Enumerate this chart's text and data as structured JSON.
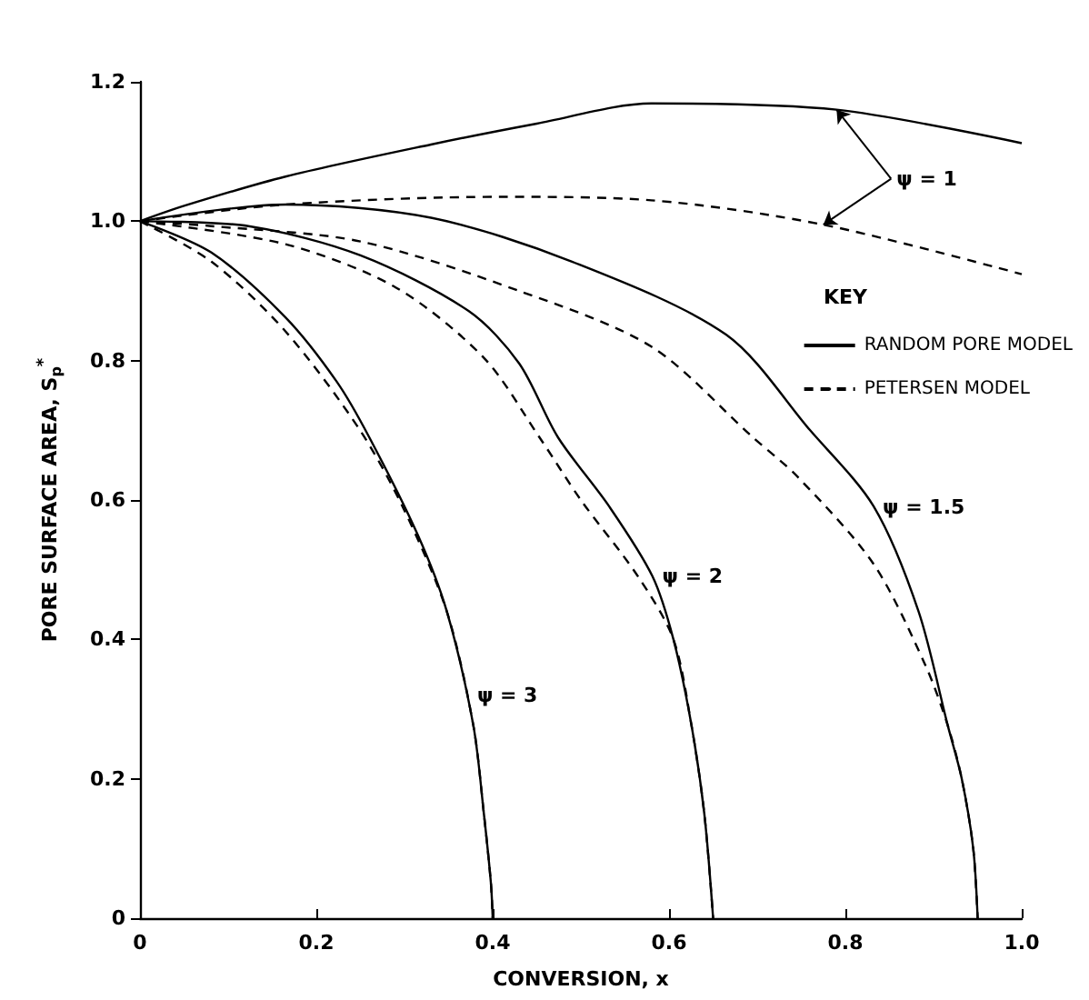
{
  "chart_data": {
    "type": "line",
    "xlabel": "CONVERSION, x",
    "ylabel": "PORE SURFACE AREA, S$_{p}$$^{*}$",
    "xlim": [
      0,
      1
    ],
    "xticks": [
      0,
      0.2,
      0.4,
      0.6,
      0.8,
      {
        "value": 1,
        "label": "1.0"
      }
    ],
    "ylim": [
      0,
      1.2
    ],
    "yticks": [
      0,
      0.2,
      0.4,
      0.6,
      0.8,
      {
        "value": 1,
        "label": "1.0"
      },
      1.2
    ],
    "legend": "right",
    "legend_title": "KEY",
    "grid": false,
    "marker": "none",
    "series": [
      {
        "name": "RANDOM PORE MODEL",
        "color": "#000000",
        "line_style": "solid",
        "x": [
          0,
          0.05,
          0.165,
          0.33,
          0.45,
          0.58,
          0.79,
          1.0
        ],
        "values": [
          1.0,
          1.022,
          1.064,
          1.11,
          1.14,
          1.169,
          1.16,
          1.112
        ]
      },
      {
        "color": "#000000",
        "line_style": "solid",
        "x": [
          0,
          0.165,
          0.33,
          0.49,
          0.665,
          0.76,
          0.832,
          0.883,
          0.916,
          0.932,
          0.945,
          0.95
        ],
        "values": [
          1.0,
          1.024,
          1.005,
          0.942,
          0.837,
          0.7,
          0.591,
          0.44,
          0.277,
          0.2,
          0.1,
          0
        ]
      },
      {
        "color": "#000000",
        "line_style": "solid",
        "x": [
          0,
          0.123,
          0.25,
          0.373,
          0.43,
          0.474,
          0.532,
          0.581,
          0.605,
          0.625,
          0.64,
          0.65
        ],
        "values": [
          1.0,
          0.993,
          0.951,
          0.871,
          0.796,
          0.69,
          0.591,
          0.491,
          0.4,
          0.28,
          0.15,
          0
        ]
      },
      {
        "color": "#000000",
        "line_style": "solid",
        "x": [
          0,
          0.081,
          0.165,
          0.223,
          0.26,
          0.315,
          0.348,
          0.378,
          0.39,
          0.398,
          0.4
        ],
        "values": [
          1.0,
          0.955,
          0.862,
          0.77,
          0.69,
          0.55,
          0.44,
          0.277,
          0.15,
          0.05,
          0
        ]
      },
      {
        "name": "PETERSEN MODEL",
        "color": "#000000",
        "line_style": "dashed",
        "x": [
          0,
          0.165,
          0.41,
          0.58,
          0.775,
          1.0
        ],
        "values": [
          1.0,
          1.024,
          1.035,
          1.03,
          0.995,
          0.924
        ]
      },
      {
        "color": "#000000",
        "line_style": "dashed",
        "x": [
          0,
          0.081,
          0.25,
          0.43,
          0.58,
          0.695,
          0.746,
          0.832,
          0.89,
          0.916,
          0.932,
          0.945,
          0.95
        ],
        "values": [
          1.0,
          0.993,
          0.971,
          0.9,
          0.82,
          0.69,
          0.633,
          0.508,
          0.365,
          0.277,
          0.2,
          0.1,
          0
        ]
      },
      {
        "color": "#000000",
        "line_style": "dashed",
        "x": [
          0,
          0.165,
          0.29,
          0.39,
          0.453,
          0.5,
          0.565,
          0.605,
          0.625,
          0.64,
          0.65
        ],
        "values": [
          1.0,
          0.967,
          0.905,
          0.804,
          0.69,
          0.6,
          0.49,
          0.4,
          0.28,
          0.15,
          0
        ]
      },
      {
        "color": "#000000",
        "line_style": "dashed",
        "x": [
          0,
          0.081,
          0.165,
          0.248,
          0.298,
          0.348,
          0.378,
          0.39,
          0.398,
          0.4
        ],
        "values": [
          1.0,
          0.942,
          0.842,
          0.703,
          0.59,
          0.44,
          0.277,
          0.15,
          0.05,
          0
        ]
      }
    ],
    "annotations": [
      {
        "text": "ψ = 1",
        "x": 0.79,
        "y": 1.16
      },
      {
        "text": "ψ = 1.5",
        "x": 0.83,
        "y": 0.59
      },
      {
        "text": "ψ = 2",
        "x": 0.58,
        "y": 0.49
      },
      {
        "text": "ψ = 3",
        "x": 0.37,
        "y": 0.32
      }
    ]
  }
}
